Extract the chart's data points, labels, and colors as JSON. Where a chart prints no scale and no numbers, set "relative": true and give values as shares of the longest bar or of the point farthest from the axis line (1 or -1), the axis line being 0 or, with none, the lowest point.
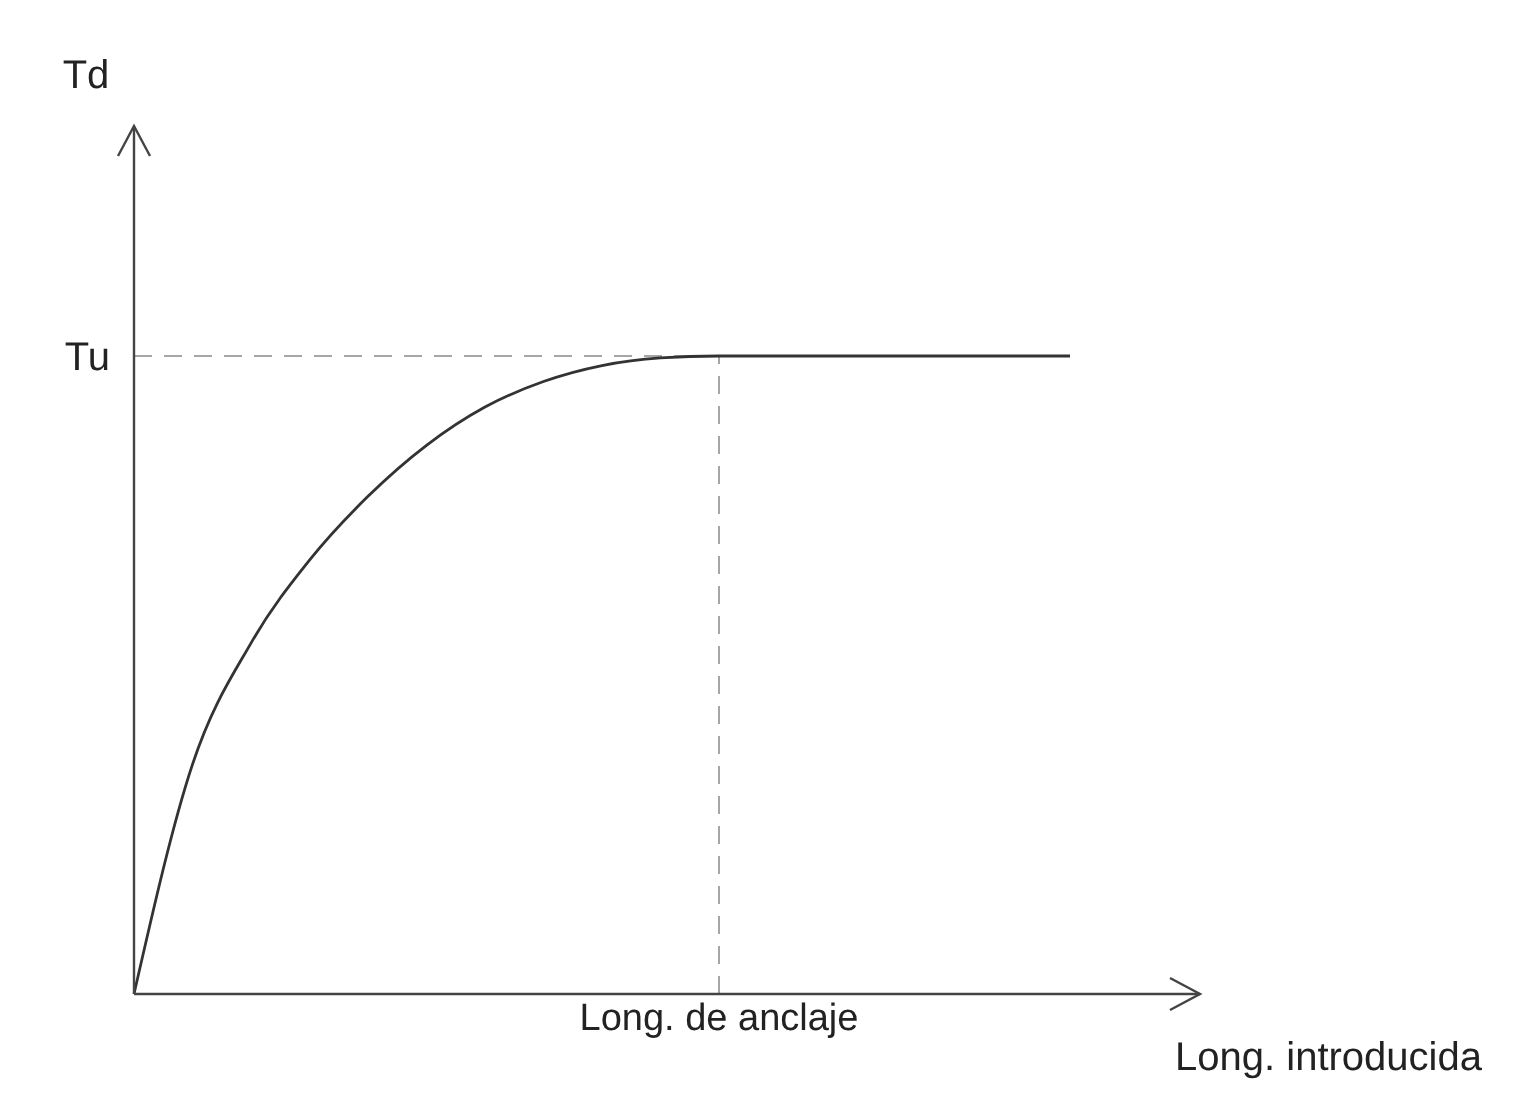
{
  "chart_data": {
    "type": "line",
    "relative": true,
    "xlabel": "Long. introducida",
    "categories": [
      null,
      null,
      null,
      null,
      null,
      null,
      null,
      null,
      null,
      null,
      null,
      null,
      null,
      null,
      null,
      null,
      null
    ],
    "series": [
      {
        "color": "#333333",
        "values": [
          0,
          0.36,
          0.55,
          0.68,
          0.78,
          0.86,
          0.92,
          0.96,
          0.985,
          0.997,
          1,
          1,
          1,
          1,
          1,
          1,
          1
        ]
      }
    ],
    "ref_lines": [
      {
        "axis": "y",
        "value": 1,
        "label": "Tu",
        "color": "#a6a6a6",
        "line_style": "dashed"
      }
    ],
    "annotations": [
      "Td",
      "Long. de anclaje"
    ],
    "marker": "none",
    "line_style": "solid"
  }
}
